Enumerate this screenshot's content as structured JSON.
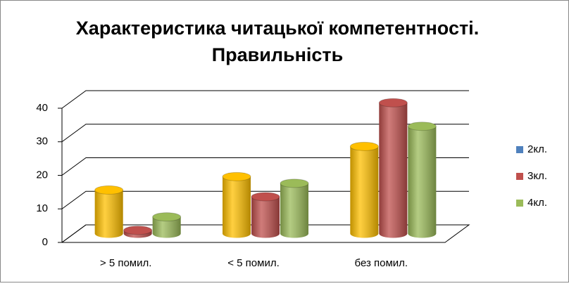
{
  "chart_data": {
    "type": "bar3d",
    "title": "Характеристика читацької компетентності.",
    "subtitle": "Правильність",
    "categories": [
      "> 5 помил.",
      "< 5 помил.",
      "без помил."
    ],
    "series": [
      {
        "name": "2кл.",
        "color": "#4f81bd",
        "bar_color": "#ffc000",
        "values": [
          13,
          17,
          26
        ]
      },
      {
        "name": "3кл.",
        "color": "#c0504d",
        "bar_color": "#c0504d",
        "values": [
          1,
          11,
          39
        ]
      },
      {
        "name": "4кл.",
        "color": "#9bbb59",
        "bar_color": "#9bbb59",
        "values": [
          5,
          15,
          32
        ]
      }
    ],
    "ylim": [
      0,
      40
    ],
    "yticks": [
      0,
      10,
      20,
      30,
      40
    ],
    "grid": true,
    "legend": "right"
  }
}
